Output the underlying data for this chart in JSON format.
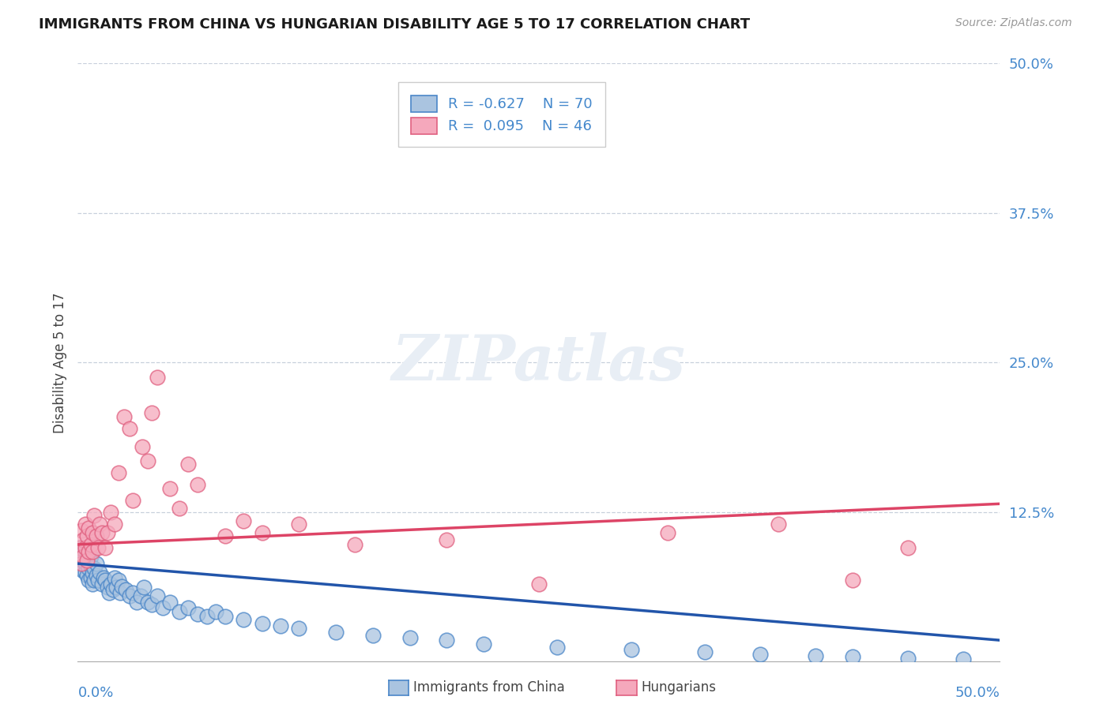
{
  "title": "IMMIGRANTS FROM CHINA VS HUNGARIAN DISABILITY AGE 5 TO 17 CORRELATION CHART",
  "source": "Source: ZipAtlas.com",
  "ylabel": "Disability Age 5 to 17",
  "yticks": [
    0.0,
    0.125,
    0.25,
    0.375,
    0.5
  ],
  "ytick_labels": [
    "",
    "12.5%",
    "25.0%",
    "37.5%",
    "50.0%"
  ],
  "xlim": [
    0.0,
    0.5
  ],
  "ylim": [
    0.0,
    0.5
  ],
  "blue_R": -0.627,
  "blue_N": 70,
  "pink_R": 0.095,
  "pink_N": 46,
  "blue_color": "#aac4e0",
  "pink_color": "#f5a8bc",
  "blue_edge_color": "#4a86c8",
  "pink_edge_color": "#e06080",
  "blue_line_color": "#2255aa",
  "pink_line_color": "#dd4466",
  "legend_label_1": "Immigrants from China",
  "legend_label_2": "Hungarians",
  "watermark": "ZIPatlas",
  "blue_line_x0": 0.0,
  "blue_line_y0": 0.082,
  "blue_line_x1": 0.5,
  "blue_line_y1": 0.018,
  "pink_line_x0": 0.0,
  "pink_line_y0": 0.098,
  "pink_line_x1": 0.5,
  "pink_line_y1": 0.132,
  "blue_scatter_x": [
    0.001,
    0.002,
    0.002,
    0.003,
    0.003,
    0.003,
    0.004,
    0.004,
    0.005,
    0.005,
    0.005,
    0.006,
    0.006,
    0.007,
    0.007,
    0.007,
    0.008,
    0.008,
    0.009,
    0.009,
    0.01,
    0.01,
    0.011,
    0.012,
    0.013,
    0.014,
    0.015,
    0.016,
    0.017,
    0.018,
    0.019,
    0.02,
    0.021,
    0.022,
    0.023,
    0.024,
    0.026,
    0.028,
    0.03,
    0.032,
    0.034,
    0.036,
    0.038,
    0.04,
    0.043,
    0.046,
    0.05,
    0.055,
    0.06,
    0.065,
    0.07,
    0.075,
    0.08,
    0.09,
    0.1,
    0.11,
    0.12,
    0.14,
    0.16,
    0.18,
    0.2,
    0.22,
    0.26,
    0.3,
    0.34,
    0.37,
    0.4,
    0.42,
    0.45,
    0.48
  ],
  "blue_scatter_y": [
    0.095,
    0.09,
    0.082,
    0.088,
    0.076,
    0.095,
    0.082,
    0.075,
    0.085,
    0.072,
    0.092,
    0.078,
    0.068,
    0.08,
    0.07,
    0.088,
    0.074,
    0.065,
    0.078,
    0.068,
    0.072,
    0.082,
    0.068,
    0.075,
    0.065,
    0.07,
    0.068,
    0.062,
    0.058,
    0.065,
    0.06,
    0.07,
    0.062,
    0.068,
    0.058,
    0.063,
    0.06,
    0.055,
    0.058,
    0.05,
    0.055,
    0.062,
    0.05,
    0.048,
    0.055,
    0.045,
    0.05,
    0.042,
    0.045,
    0.04,
    0.038,
    0.042,
    0.038,
    0.035,
    0.032,
    0.03,
    0.028,
    0.025,
    0.022,
    0.02,
    0.018,
    0.015,
    0.012,
    0.01,
    0.008,
    0.006,
    0.005,
    0.004,
    0.003,
    0.002
  ],
  "pink_scatter_x": [
    0.001,
    0.002,
    0.002,
    0.003,
    0.003,
    0.004,
    0.004,
    0.005,
    0.005,
    0.006,
    0.006,
    0.007,
    0.008,
    0.008,
    0.009,
    0.01,
    0.011,
    0.012,
    0.013,
    0.015,
    0.016,
    0.018,
    0.02,
    0.022,
    0.025,
    0.028,
    0.03,
    0.035,
    0.038,
    0.04,
    0.043,
    0.05,
    0.055,
    0.06,
    0.065,
    0.08,
    0.09,
    0.1,
    0.12,
    0.15,
    0.2,
    0.25,
    0.32,
    0.38,
    0.42,
    0.45
  ],
  "pink_scatter_y": [
    0.095,
    0.082,
    0.11,
    0.088,
    0.102,
    0.095,
    0.115,
    0.085,
    0.105,
    0.092,
    0.112,
    0.098,
    0.108,
    0.092,
    0.122,
    0.105,
    0.095,
    0.115,
    0.108,
    0.095,
    0.108,
    0.125,
    0.115,
    0.158,
    0.205,
    0.195,
    0.135,
    0.18,
    0.168,
    0.208,
    0.238,
    0.145,
    0.128,
    0.165,
    0.148,
    0.105,
    0.118,
    0.108,
    0.115,
    0.098,
    0.102,
    0.065,
    0.108,
    0.115,
    0.068,
    0.095
  ]
}
